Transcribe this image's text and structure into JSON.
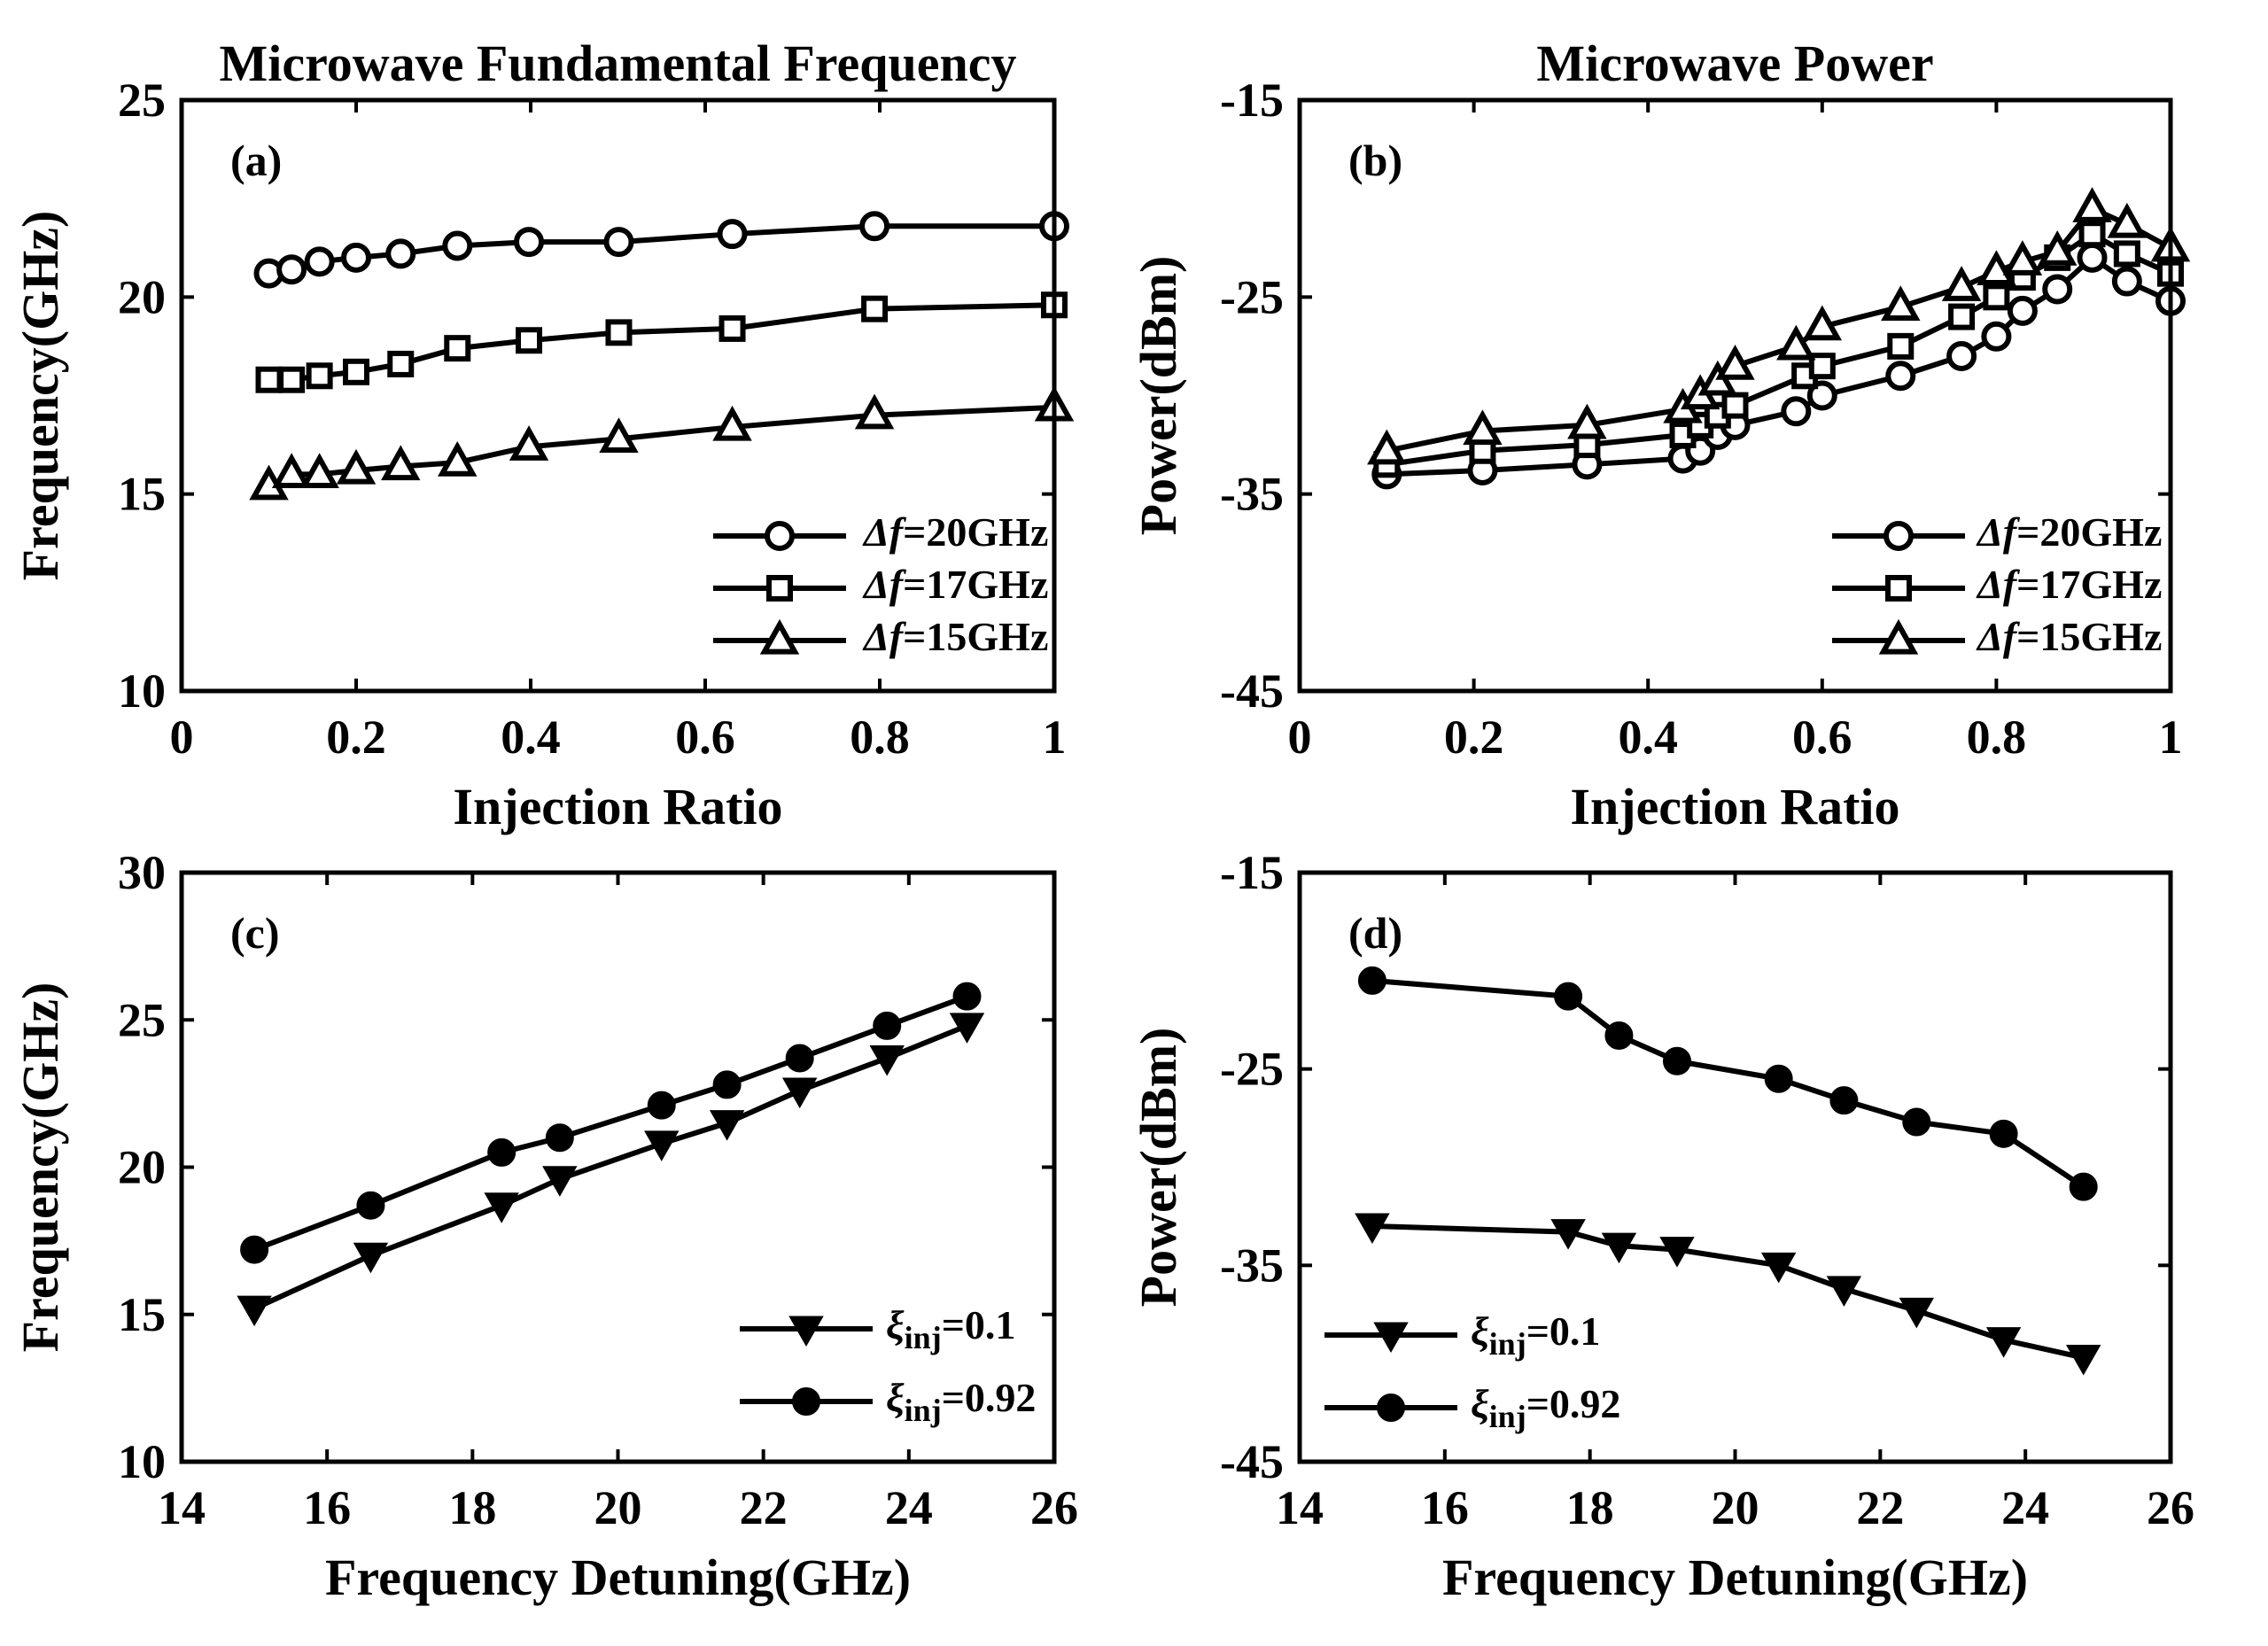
{
  "chart_data": [
    {
      "id": "a",
      "type": "line",
      "panel_label": "(a)",
      "title": "Microwave Fundamental Frequency",
      "xlabel": "Injection Ratio",
      "ylabel": "Frequency(GHz)",
      "xlim": [
        0,
        1
      ],
      "ylim": [
        10,
        25
      ],
      "xticks": [
        0,
        0.2,
        0.4,
        0.6,
        0.8,
        1
      ],
      "xtick_labels": [
        "0",
        "0.2",
        "0.4",
        "0.6",
        "0.8",
        "1"
      ],
      "yticks": [
        10,
        15,
        20,
        25
      ],
      "ytick_labels": [
        "10",
        "15",
        "20",
        "25"
      ],
      "legend_position": "bottom-right",
      "series": [
        {
          "name": "Δf=20GHz",
          "legend_symbol": "Δf",
          "legend_rest": "=20GHz",
          "marker": "circle-open",
          "x": [
            0.1,
            0.126,
            0.158,
            0.2,
            0.251,
            0.316,
            0.398,
            0.501,
            0.631,
            0.794,
            1.0
          ],
          "y": [
            20.6,
            20.7,
            20.9,
            21.0,
            21.1,
            21.3,
            21.4,
            21.4,
            21.6,
            21.8,
            21.8
          ]
        },
        {
          "name": "Δf=17GHz",
          "legend_symbol": "Δf",
          "legend_rest": "=17GHz",
          "marker": "square-open",
          "x": [
            0.1,
            0.126,
            0.158,
            0.2,
            0.251,
            0.316,
            0.398,
            0.501,
            0.631,
            0.794,
            1.0
          ],
          "y": [
            17.9,
            17.9,
            18.0,
            18.1,
            18.3,
            18.7,
            18.9,
            19.1,
            19.2,
            19.7,
            19.8
          ]
        },
        {
          "name": "Δf=15GHz",
          "legend_symbol": "Δf",
          "legend_rest": "=15GHz",
          "marker": "triangle-up-open",
          "x": [
            0.1,
            0.126,
            0.158,
            0.2,
            0.251,
            0.316,
            0.398,
            0.501,
            0.631,
            0.794,
            1.0
          ],
          "y": [
            15.2,
            15.5,
            15.5,
            15.6,
            15.7,
            15.8,
            16.2,
            16.4,
            16.7,
            17.0,
            17.2
          ]
        }
      ]
    },
    {
      "id": "b",
      "type": "line",
      "panel_label": "(b)",
      "title": "Microwave Power",
      "xlabel": "Injection Ratio",
      "ylabel": "Power(dBm)",
      "xlim": [
        0,
        1
      ],
      "ylim": [
        -45,
        -15
      ],
      "xticks": [
        0,
        0.2,
        0.4,
        0.6,
        0.8,
        1
      ],
      "xtick_labels": [
        "0",
        "0.2",
        "0.4",
        "0.6",
        "0.8",
        "1"
      ],
      "yticks": [
        -45,
        -35,
        -25,
        -15
      ],
      "ytick_labels": [
        "-45",
        "-35",
        "-25",
        "-15"
      ],
      "legend_position": "bottom-right",
      "series": [
        {
          "name": "Δf=20GHz",
          "legend_symbol": "Δf",
          "legend_rest": "=20GHz",
          "marker": "circle-open",
          "x": [
            0.1,
            0.21,
            0.33,
            0.44,
            0.46,
            0.48,
            0.5,
            0.57,
            0.6,
            0.69,
            0.76,
            0.8,
            0.83,
            0.87,
            0.91,
            0.95,
            1.0
          ],
          "y": [
            -34.0,
            -33.8,
            -33.5,
            -33.2,
            -32.8,
            -32.0,
            -31.5,
            -30.8,
            -30.0,
            -29.0,
            -28.0,
            -27.0,
            -25.7,
            -24.6,
            -23.0,
            -24.2,
            -25.2
          ]
        },
        {
          "name": "Δf=17GHz",
          "legend_symbol": "Δf",
          "legend_rest": "=17GHz",
          "marker": "square-open",
          "x": [
            0.1,
            0.21,
            0.33,
            0.44,
            0.46,
            0.48,
            0.5,
            0.58,
            0.6,
            0.69,
            0.76,
            0.8,
            0.83,
            0.87,
            0.91,
            0.95,
            1.0
          ],
          "y": [
            -33.5,
            -32.8,
            -32.5,
            -32.0,
            -31.5,
            -31.0,
            -30.5,
            -29.0,
            -28.5,
            -27.5,
            -26.0,
            -25.0,
            -24.0,
            -23.0,
            -21.8,
            -22.8,
            -23.8
          ]
        },
        {
          "name": "Δf=15GHz",
          "legend_symbol": "Δf",
          "legend_rest": "=15GHz",
          "marker": "triangle-up-open",
          "x": [
            0.1,
            0.21,
            0.33,
            0.44,
            0.46,
            0.48,
            0.5,
            0.57,
            0.6,
            0.69,
            0.76,
            0.8,
            0.83,
            0.87,
            0.91,
            0.95,
            1.0
          ],
          "y": [
            -32.8,
            -31.8,
            -31.5,
            -30.7,
            -30.0,
            -29.3,
            -28.5,
            -27.5,
            -26.5,
            -25.5,
            -24.5,
            -23.7,
            -23.2,
            -22.7,
            -20.5,
            -21.3,
            -22.5
          ]
        }
      ]
    },
    {
      "id": "c",
      "type": "line",
      "panel_label": "(c)",
      "title": "",
      "xlabel": "Frequency Detuning(GHz)",
      "ylabel": "Frequency(GHz)",
      "xlim": [
        14,
        26
      ],
      "ylim": [
        10,
        30
      ],
      "xticks": [
        14,
        16,
        18,
        20,
        22,
        24,
        26
      ],
      "xtick_labels": [
        "14",
        "16",
        "18",
        "20",
        "22",
        "24",
        "26"
      ],
      "yticks": [
        10,
        15,
        20,
        25,
        30
      ],
      "ytick_labels": [
        "10",
        "15",
        "20",
        "25",
        "30"
      ],
      "legend_position": "bottom-right",
      "series": [
        {
          "name": "ξinj=0.1",
          "legend_symbol": "ξ",
          "legend_sub": "inj",
          "legend_rest": "=0.1",
          "marker": "triangle-down-filled",
          "x": [
            15.0,
            16.6,
            18.4,
            19.2,
            20.6,
            21.5,
            22.5,
            23.7,
            24.8
          ],
          "y": [
            15.2,
            17.0,
            18.7,
            19.6,
            20.8,
            21.5,
            22.6,
            23.7,
            24.8
          ]
        },
        {
          "name": "ξinj=0.92",
          "legend_symbol": "ξ",
          "legend_sub": "inj",
          "legend_rest": "=0.92",
          "marker": "circle-filled",
          "x": [
            15.0,
            16.6,
            18.4,
            19.2,
            20.6,
            21.5,
            22.5,
            23.7,
            24.8
          ],
          "y": [
            17.2,
            18.7,
            20.5,
            21.0,
            22.1,
            22.8,
            23.7,
            24.8,
            25.8
          ]
        }
      ]
    },
    {
      "id": "d",
      "type": "line",
      "panel_label": "(d)",
      "title": "",
      "xlabel": "Frequency Detuning(GHz)",
      "ylabel": "Power(dBm)",
      "xlim": [
        14,
        26
      ],
      "ylim": [
        -45,
        -15
      ],
      "xticks": [
        14,
        16,
        18,
        20,
        22,
        24,
        26
      ],
      "xtick_labels": [
        "14",
        "16",
        "18",
        "20",
        "22",
        "24",
        "26"
      ],
      "yticks": [
        -45,
        -35,
        -25,
        -15
      ],
      "ytick_labels": [
        "-45",
        "-35",
        "-25",
        "-15"
      ],
      "legend_position": "bottom-left",
      "series": [
        {
          "name": "ξinj=0.1",
          "legend_symbol": "ξ",
          "legend_sub": "inj",
          "legend_rest": "=0.1",
          "marker": "triangle-down-filled",
          "x": [
            15.0,
            17.7,
            18.4,
            19.2,
            20.6,
            21.5,
            22.5,
            23.7,
            24.8
          ],
          "y": [
            -33.0,
            -33.3,
            -34.0,
            -34.2,
            -35.0,
            -36.2,
            -37.3,
            -38.8,
            -39.7
          ]
        },
        {
          "name": "ξinj=0.92",
          "legend_symbol": "ξ",
          "legend_sub": "inj",
          "legend_rest": "=0.92",
          "marker": "circle-filled",
          "x": [
            15.0,
            17.7,
            18.4,
            19.2,
            20.6,
            21.5,
            22.5,
            23.7,
            24.8
          ],
          "y": [
            -20.5,
            -21.3,
            -23.3,
            -24.6,
            -25.5,
            -26.6,
            -27.7,
            -28.3,
            -31.0
          ]
        }
      ]
    }
  ]
}
